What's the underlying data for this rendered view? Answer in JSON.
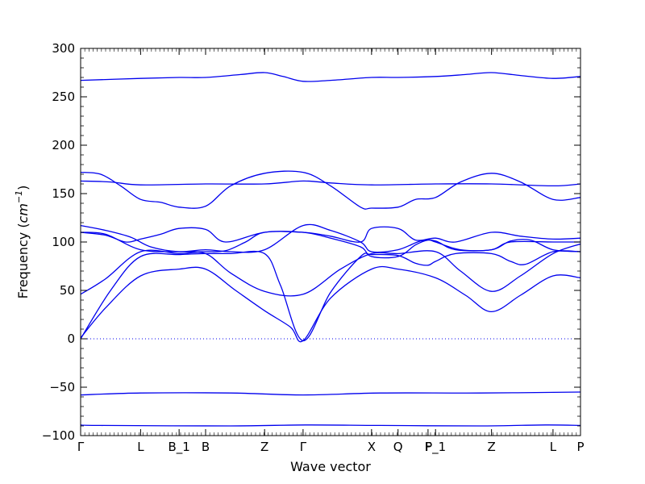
{
  "chart_data": {
    "type": "line",
    "title": "",
    "xlabel": "Wave vector",
    "ylabel_prefix": "Frequency (",
    "ylabel_unit": "cm",
    "ylabel_exp": "−1",
    "ylabel_suffix": ")",
    "ylim": [
      -100,
      300
    ],
    "yticks": [
      300,
      250,
      200,
      150,
      100,
      50,
      0,
      -50,
      -100
    ],
    "ytick_labels": [
      "300",
      "250",
      "200",
      "150",
      "100",
      "50",
      "0",
      "−50",
      "−100"
    ],
    "xlim": [
      0,
      1
    ],
    "kpoints": [
      {
        "label": "Γ",
        "x": 0.0
      },
      {
        "label": "L",
        "x": 0.12
      },
      {
        "label": "B_1",
        "x": 0.197
      },
      {
        "label": "B",
        "x": 0.25
      },
      {
        "label": "Z",
        "x": 0.368
      },
      {
        "label": "Γ",
        "x": 0.445
      },
      {
        "label": "X",
        "x": 0.582
      },
      {
        "label": "Q",
        "x": 0.635
      },
      {
        "label": "F",
        "x": 0.695
      },
      {
        "label": "P_1",
        "x": 0.71
      },
      {
        "label": "Z",
        "x": 0.822
      },
      {
        "label": "L",
        "x": 0.945
      },
      {
        "label": "P",
        "x": 1.0
      }
    ],
    "zero_line": true,
    "line_color": "#0000ee",
    "series": [
      {
        "points": [
          [
            0,
            -89
          ],
          [
            0.04,
            -89.5
          ],
          [
            0.3,
            -90
          ],
          [
            0.45,
            -89
          ],
          [
            0.6,
            -89.5
          ],
          [
            0.8,
            -90
          ],
          [
            0.93,
            -89
          ],
          [
            1,
            -89.5
          ]
        ]
      },
      {
        "points": [
          [
            0,
            -58
          ],
          [
            0.12,
            -56
          ],
          [
            0.3,
            -56
          ],
          [
            0.445,
            -58
          ],
          [
            0.6,
            -56
          ],
          [
            0.8,
            -56
          ],
          [
            1,
            -55
          ]
        ]
      },
      {
        "points": [
          [
            0,
            1
          ],
          [
            0.05,
            32
          ],
          [
            0.12,
            65
          ],
          [
            0.197,
            72
          ],
          [
            0.25,
            72
          ],
          [
            0.31,
            50
          ],
          [
            0.368,
            29
          ],
          [
            0.42,
            12
          ],
          [
            0.445,
            -2
          ],
          [
            0.5,
            42
          ],
          [
            0.582,
            72
          ],
          [
            0.635,
            72
          ],
          [
            0.71,
            63
          ],
          [
            0.77,
            45
          ],
          [
            0.822,
            28
          ],
          [
            0.88,
            45
          ],
          [
            0.945,
            65
          ],
          [
            1,
            63
          ]
        ]
      },
      {
        "points": [
          [
            0,
            0
          ],
          [
            0.06,
            50
          ],
          [
            0.12,
            85
          ],
          [
            0.197,
            87
          ],
          [
            0.25,
            88
          ],
          [
            0.3,
            88
          ],
          [
            0.368,
            88
          ],
          [
            0.4,
            55
          ],
          [
            0.445,
            -2
          ],
          [
            0.5,
            48
          ],
          [
            0.56,
            85
          ],
          [
            0.582,
            87
          ],
          [
            0.635,
            86
          ],
          [
            0.67,
            78
          ],
          [
            0.695,
            76
          ],
          [
            0.71,
            80
          ],
          [
            0.75,
            88
          ],
          [
            0.822,
            88
          ],
          [
            0.86,
            80
          ],
          [
            0.89,
            77
          ],
          [
            0.945,
            90
          ],
          [
            1,
            90
          ]
        ]
      },
      {
        "points": [
          [
            0,
            46
          ],
          [
            0.05,
            62
          ],
          [
            0.12,
            90
          ],
          [
            0.197,
            88
          ],
          [
            0.25,
            88
          ],
          [
            0.3,
            68
          ],
          [
            0.368,
            49
          ],
          [
            0.445,
            46
          ],
          [
            0.52,
            72
          ],
          [
            0.582,
            88
          ],
          [
            0.635,
            88
          ],
          [
            0.71,
            90
          ],
          [
            0.76,
            70
          ],
          [
            0.822,
            49
          ],
          [
            0.88,
            65
          ],
          [
            0.945,
            88
          ],
          [
            1,
            98
          ]
        ]
      },
      {
        "points": [
          [
            0,
            117
          ],
          [
            0.05,
            112
          ],
          [
            0.1,
            105
          ],
          [
            0.14,
            95
          ],
          [
            0.197,
            90
          ],
          [
            0.25,
            92
          ],
          [
            0.3,
            90
          ],
          [
            0.368,
            92
          ],
          [
            0.445,
            117
          ],
          [
            0.5,
            112
          ],
          [
            0.56,
            100
          ],
          [
            0.582,
            90
          ],
          [
            0.635,
            92
          ],
          [
            0.68,
            101
          ],
          [
            0.71,
            101
          ],
          [
            0.75,
            92
          ],
          [
            0.822,
            92
          ],
          [
            0.86,
            101
          ],
          [
            0.9,
            102
          ],
          [
            0.945,
            92
          ],
          [
            1,
            90
          ]
        ]
      },
      {
        "points": [
          [
            0,
            110
          ],
          [
            0.05,
            107
          ],
          [
            0.09,
            100
          ],
          [
            0.12,
            103
          ],
          [
            0.16,
            108
          ],
          [
            0.197,
            114
          ],
          [
            0.25,
            113
          ],
          [
            0.29,
            100
          ],
          [
            0.368,
            110
          ],
          [
            0.445,
            110
          ],
          [
            0.5,
            106
          ],
          [
            0.56,
            100
          ],
          [
            0.582,
            114
          ],
          [
            0.635,
            114
          ],
          [
            0.67,
            102
          ],
          [
            0.71,
            104
          ],
          [
            0.75,
            100
          ],
          [
            0.822,
            110
          ],
          [
            0.88,
            106
          ],
          [
            0.945,
            103
          ],
          [
            1,
            104
          ]
        ]
      },
      {
        "points": [
          [
            0,
            110
          ],
          [
            0.05,
            108
          ],
          [
            0.12,
            92
          ],
          [
            0.197,
            90
          ],
          [
            0.25,
            90
          ],
          [
            0.29,
            91
          ],
          [
            0.33,
            100
          ],
          [
            0.368,
            110
          ],
          [
            0.445,
            110
          ],
          [
            0.5,
            104
          ],
          [
            0.56,
            95
          ],
          [
            0.582,
            85
          ],
          [
            0.635,
            85
          ],
          [
            0.67,
            97
          ],
          [
            0.695,
            102
          ],
          [
            0.71,
            100
          ],
          [
            0.76,
            92
          ],
          [
            0.822,
            92
          ],
          [
            0.86,
            100
          ],
          [
            0.945,
            100
          ],
          [
            1,
            100
          ]
        ]
      },
      {
        "points": [
          [
            0,
            172
          ],
          [
            0.04,
            170
          ],
          [
            0.08,
            158
          ],
          [
            0.12,
            144
          ],
          [
            0.16,
            141
          ],
          [
            0.197,
            136
          ],
          [
            0.25,
            137
          ],
          [
            0.3,
            158
          ],
          [
            0.368,
            171
          ],
          [
            0.445,
            172
          ],
          [
            0.5,
            158
          ],
          [
            0.56,
            136
          ],
          [
            0.582,
            135
          ],
          [
            0.635,
            136
          ],
          [
            0.67,
            144
          ],
          [
            0.71,
            146
          ],
          [
            0.76,
            162
          ],
          [
            0.822,
            171
          ],
          [
            0.88,
            162
          ],
          [
            0.945,
            144
          ],
          [
            1,
            146
          ]
        ]
      },
      {
        "points": [
          [
            0,
            163
          ],
          [
            0.06,
            162
          ],
          [
            0.12,
            159
          ],
          [
            0.25,
            160
          ],
          [
            0.368,
            160
          ],
          [
            0.445,
            163
          ],
          [
            0.5,
            161
          ],
          [
            0.582,
            159
          ],
          [
            0.71,
            160
          ],
          [
            0.822,
            160
          ],
          [
            0.945,
            158
          ],
          [
            1,
            160
          ]
        ]
      },
      {
        "points": [
          [
            0,
            267
          ],
          [
            0.12,
            269
          ],
          [
            0.197,
            270
          ],
          [
            0.25,
            270
          ],
          [
            0.32,
            273
          ],
          [
            0.368,
            275
          ],
          [
            0.405,
            271
          ],
          [
            0.445,
            266
          ],
          [
            0.5,
            267
          ],
          [
            0.582,
            270
          ],
          [
            0.635,
            270
          ],
          [
            0.71,
            271
          ],
          [
            0.77,
            273
          ],
          [
            0.822,
            275
          ],
          [
            0.88,
            272
          ],
          [
            0.945,
            269
          ],
          [
            1,
            271
          ]
        ]
      }
    ]
  }
}
